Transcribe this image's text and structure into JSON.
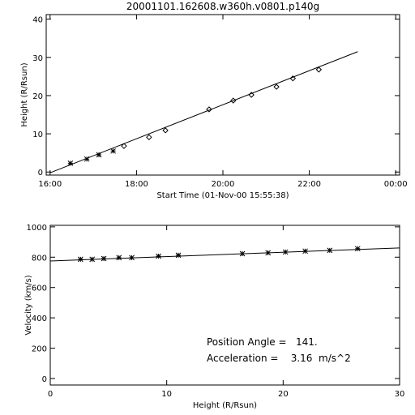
{
  "chart_data": [
    {
      "type": "scatter",
      "title": "20001101.162608.w360h.v0801.p140g",
      "xlabel": "Start Time (01-Nov-00 15:55:38)",
      "ylabel": "Height (R/Rsun)",
      "xlim": [
        15.91,
        24.09
      ],
      "ylim": [
        -0.8,
        41.2
      ],
      "xticks": [
        {
          "value": 16,
          "label": "16:00"
        },
        {
          "value": 18,
          "label": "18:00"
        },
        {
          "value": 20,
          "label": "20:00"
        },
        {
          "value": 22,
          "label": "22:00"
        },
        {
          "value": 24,
          "label": "00:00"
        }
      ],
      "yticks": [
        0,
        10,
        20,
        30,
        40
      ],
      "series": [
        {
          "marker": "asterisk",
          "color": "#000000",
          "x": [
            16.47,
            16.85,
            17.13,
            17.46
          ],
          "values": [
            2.3,
            3.4,
            4.5,
            5.5
          ]
        },
        {
          "marker": "diamond",
          "color": "#000000",
          "x": [
            17.71,
            18.29,
            18.67,
            19.68,
            20.24,
            20.66,
            21.24,
            21.62,
            22.22
          ],
          "values": [
            6.8,
            9.1,
            10.9,
            16.4,
            18.7,
            20.2,
            22.3,
            24.5,
            26.8
          ]
        },
        {
          "marker": "line",
          "color": "#000000",
          "x": [
            16,
            23.12
          ],
          "values": [
            -0.2,
            31.5
          ]
        }
      ]
    },
    {
      "type": "scatter",
      "xlabel": "Height (R/Rsun)",
      "ylabel": "Velocity (km/s)",
      "xlim": [
        0,
        30
      ],
      "ylim": [
        -43,
        1010
      ],
      "xticks": [
        0,
        10,
        20,
        30
      ],
      "yticks": [
        0,
        200,
        400,
        600,
        800,
        1000
      ],
      "annotations": [
        "Position Angle =   141.",
        "Acceleration =    3.16  m/s^2"
      ],
      "series": [
        {
          "marker": "asterisk",
          "color": "#000000",
          "x": [
            2.6,
            3.6,
            4.6,
            5.9,
            7.0,
            9.3,
            11.0,
            16.5,
            18.7,
            20.2,
            21.9,
            24.0,
            26.4
          ],
          "values": [
            786,
            786,
            791,
            797,
            797,
            807,
            813,
            823,
            829,
            834,
            840,
            845,
            856
          ]
        },
        {
          "marker": "line",
          "color": "#000000",
          "x": [
            0,
            30
          ],
          "values": [
            775,
            861
          ]
        }
      ]
    }
  ]
}
